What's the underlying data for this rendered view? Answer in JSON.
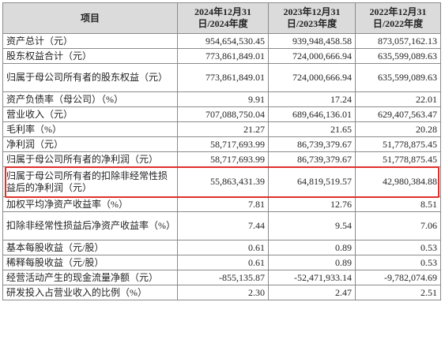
{
  "header": {
    "item": "项目",
    "p2024": "2024年12月31日/2024年度",
    "p2023": "2023年12月31日/2023年度",
    "p2022": "2022年12月31日/2022年度"
  },
  "rows": [
    {
      "label": "资产总计（元）",
      "v2024": "954,654,530.45",
      "v2023": "939,948,458.58",
      "v2022": "873,057,162.13"
    },
    {
      "label": "股东权益合计（元）",
      "v2024": "773,861,849.01",
      "v2023": "724,000,666.94",
      "v2022": "635,599,089.63"
    },
    {
      "label": "归属于母公司所有者的股东权益（元）",
      "v2024": "773,861,849.01",
      "v2023": "724,000,666.94",
      "v2022": "635,599,089.63"
    },
    {
      "label": "资产负债率（母公司）（%）",
      "v2024": "9.91",
      "v2023": "17.24",
      "v2022": "22.01"
    },
    {
      "label": "营业收入（元）",
      "v2024": "707,088,750.04",
      "v2023": "689,646,136.01",
      "v2022": "629,407,563.47"
    },
    {
      "label": "毛利率（%）",
      "v2024": "21.27",
      "v2023": "21.65",
      "v2022": "20.28"
    },
    {
      "label": "净利润（元）",
      "v2024": "58,717,693.99",
      "v2023": "86,739,379.67",
      "v2022": "51,778,875.45"
    },
    {
      "label": "归属于母公司所有者的净利润（元）",
      "v2024": "58,717,693.99",
      "v2023": "86,739,379.67",
      "v2022": "51,778,875.45"
    },
    {
      "label": "归属于母公司所有者的扣除非经常性损益后的净利润（元）",
      "v2024": "55,863,431.39",
      "v2023": "64,819,519.57",
      "v2022": "42,980,384.88"
    },
    {
      "label": "加权平均净资产收益率（%）",
      "v2024": "7.81",
      "v2023": "12.76",
      "v2022": "8.51"
    },
    {
      "label": "扣除非经常性损益后净资产收益率（%）",
      "v2024": "7.44",
      "v2023": "9.54",
      "v2022": "7.06"
    },
    {
      "label": "基本每股收益（元/股）",
      "v2024": "0.61",
      "v2023": "0.89",
      "v2022": "0.53"
    },
    {
      "label": "稀释每股收益（元/股）",
      "v2024": "0.61",
      "v2023": "0.89",
      "v2022": "0.53"
    },
    {
      "label": "经营活动产生的现金流量净额（元）",
      "v2024": "-855,135.87",
      "v2023": "-52,471,933.14",
      "v2022": "-9,782,074.69"
    },
    {
      "label": "研发投入占营业收入的比例（%）",
      "v2024": "2.30",
      "v2023": "2.47",
      "v2022": "2.51"
    }
  ],
  "highlight": {
    "row_index": 8,
    "color": "#e0302b"
  }
}
